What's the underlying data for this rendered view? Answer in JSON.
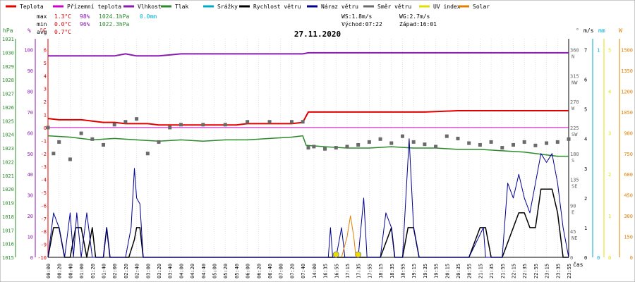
{
  "legend": [
    {
      "label": "Teplota",
      "color": "#e00000"
    },
    {
      "label": "Přízemní teplota",
      "color": "#cc00cc"
    },
    {
      "label": "Vlhkost",
      "color": "#8a1ab0"
    },
    {
      "label": "Tlak",
      "color": "#2a8a2a"
    },
    {
      "label": "Srážky",
      "color": "#00aacc"
    },
    {
      "label": "Rychlost větru",
      "color": "#000000"
    },
    {
      "label": "Náraz větru",
      "color": "#000090"
    },
    {
      "label": "Směr větru",
      "color": "#6a6a6a"
    },
    {
      "label": "UV index",
      "color": "#e0e000"
    },
    {
      "label": "Solar",
      "color": "#e08000"
    }
  ],
  "stats": {
    "max": {
      "label": "max",
      "temp": "1.3°C",
      "hum": "98%",
      "press": "1024.1hPa",
      "rain": "0.0mm"
    },
    "min": {
      "label": "min",
      "temp": "0.0°C",
      "hum": "96%",
      "press": "1022.3hPa"
    },
    "avg": {
      "label": "avg",
      "temp": "0.7°C"
    }
  },
  "wind_info": {
    "ws": "WS:1.8m/s",
    "wg": "WG:2.7m/s",
    "sunrise": "Východ:07:22",
    "sunset": "Západ:16:01"
  },
  "axis_units": {
    "hpa": "hPa",
    "pct": "%",
    "c": "°C",
    "deg": "°",
    "ms": "m/s",
    "mm": "mm",
    "w": "W",
    "time": "čas"
  },
  "chart_data": {
    "type": "line",
    "title": "27.11.2020",
    "y_axes": {
      "pressure_hpa": {
        "ticks": [
          1015,
          1016,
          1017,
          1018,
          1019,
          1020,
          1021,
          1022,
          1023,
          1024,
          1025,
          1026,
          1027,
          1028,
          1029,
          1030,
          1031
        ]
      },
      "humidity_pct": {
        "ticks": [
          0,
          10,
          20,
          30,
          40,
          50,
          60,
          70,
          80,
          90,
          100
        ]
      },
      "temperature_c": {
        "ticks": [
          -10,
          -9,
          -8,
          -7,
          -6,
          -5,
          -4,
          -3,
          -2,
          -1,
          0,
          1,
          2,
          3,
          4,
          5,
          6
        ]
      },
      "wind_dir_deg": {
        "ticks": [
          {
            "v": 360,
            "d": "N"
          },
          {
            "v": 315,
            "d": "NW"
          },
          {
            "v": 270,
            "d": "W"
          },
          {
            "v": 225,
            "d": "SW"
          },
          {
            "v": 180,
            "d": "S"
          },
          {
            "v": 135,
            "d": "SE"
          },
          {
            "v": 90,
            "d": "E"
          },
          {
            "v": 45,
            "d": "NE"
          },
          {
            "v": 0,
            "d": ""
          }
        ]
      },
      "wind_ms": {
        "ticks": [
          0,
          1,
          2,
          3,
          4,
          5,
          6,
          7
        ]
      },
      "rain_mm": {
        "ticks": [
          0,
          1
        ]
      },
      "uv": {
        "ticks": [
          0,
          1,
          2,
          3,
          4,
          5
        ]
      },
      "solar_w": {
        "ticks": [
          0,
          150,
          300,
          450,
          600,
          750,
          900,
          1050,
          1200,
          1350,
          1500
        ]
      }
    },
    "x_ticks": [
      "00:00",
      "00:20",
      "00:40",
      "01:00",
      "01:20",
      "01:40",
      "02:00",
      "02:20",
      "02:40",
      "03:00",
      "03:20",
      "03:40",
      "04:00",
      "04:20",
      "04:40",
      "05:00",
      "05:20",
      "05:40",
      "06:00",
      "06:20",
      "06:40",
      "07:00",
      "07:20",
      "07:40",
      "14:00",
      "16:35",
      "16:55",
      "17:15",
      "17:35",
      "17:55",
      "18:15",
      "18:35",
      "18:55",
      "19:15",
      "19:35",
      "19:55",
      "20:15",
      "20:35",
      "20:55",
      "21:15",
      "21:35",
      "21:55",
      "22:15",
      "22:35",
      "22:55",
      "23:15",
      "23:35",
      "23:55"
    ],
    "series": [
      {
        "name": "Teplota",
        "points": [
          [
            0,
            0.7
          ],
          [
            1,
            0.6
          ],
          [
            2,
            0.6
          ],
          [
            3,
            0.6
          ],
          [
            4,
            0.5
          ],
          [
            5,
            0.4
          ],
          [
            6,
            0.4
          ],
          [
            7,
            0.3
          ],
          [
            8,
            0.3
          ],
          [
            9,
            0.3
          ],
          [
            10,
            0.2
          ],
          [
            11,
            0.2
          ],
          [
            12,
            0.2
          ],
          [
            13,
            0.2
          ],
          [
            14,
            0.2
          ],
          [
            15,
            0.2
          ],
          [
            16,
            0.2
          ],
          [
            17,
            0.2
          ],
          [
            18,
            0.3
          ],
          [
            19,
            0.3
          ],
          [
            20,
            0.3
          ],
          [
            21,
            0.3
          ],
          [
            22,
            0.3
          ],
          [
            23,
            0.4
          ],
          [
            23.5,
            1.2
          ],
          [
            25,
            1.2
          ],
          [
            28,
            1.2
          ],
          [
            31,
            1.2
          ],
          [
            34,
            1.2
          ],
          [
            37,
            1.3
          ],
          [
            40,
            1.3
          ],
          [
            43,
            1.3
          ],
          [
            46,
            1.3
          ],
          [
            47,
            1.3
          ]
        ]
      },
      {
        "name": "Přízemní teplota",
        "points": [
          [
            0,
            0.0
          ],
          [
            47,
            0.0
          ]
        ]
      },
      {
        "name": "Vlhkost",
        "points": [
          [
            0,
            97
          ],
          [
            6,
            97
          ],
          [
            7,
            98
          ],
          [
            8,
            97
          ],
          [
            9,
            97
          ],
          [
            10,
            97
          ],
          [
            11,
            97.5
          ],
          [
            12,
            98
          ],
          [
            23,
            98
          ],
          [
            23.5,
            98.5
          ],
          [
            47,
            98.5
          ]
        ]
      },
      {
        "name": "Tlak",
        "points": [
          [
            0,
            1023.9
          ],
          [
            2,
            1023.8
          ],
          [
            4,
            1023.6
          ],
          [
            6,
            1023.7
          ],
          [
            8,
            1023.6
          ],
          [
            10,
            1023.5
          ],
          [
            12,
            1023.6
          ],
          [
            14,
            1023.5
          ],
          [
            16,
            1023.6
          ],
          [
            18,
            1023.6
          ],
          [
            20,
            1023.7
          ],
          [
            22,
            1023.8
          ],
          [
            23,
            1023.9
          ],
          [
            23.3,
            1023.2
          ],
          [
            25,
            1023.1
          ],
          [
            27,
            1023.0
          ],
          [
            29,
            1023.0
          ],
          [
            31,
            1023.1
          ],
          [
            33,
            1023.0
          ],
          [
            35,
            1023.0
          ],
          [
            37,
            1022.9
          ],
          [
            39,
            1022.9
          ],
          [
            41,
            1022.8
          ],
          [
            43,
            1022.7
          ],
          [
            45,
            1022.5
          ],
          [
            46,
            1022.4
          ],
          [
            47,
            1022.4
          ]
        ]
      },
      {
        "name": "Rychlost větru",
        "points": [
          [
            0,
            0
          ],
          [
            0.5,
            1
          ],
          [
            1,
            1
          ],
          [
            1.5,
            0
          ],
          [
            2,
            0
          ],
          [
            2.5,
            1
          ],
          [
            3,
            1
          ],
          [
            3.5,
            0
          ],
          [
            4,
            1
          ],
          [
            4.3,
            0
          ],
          [
            5,
            0
          ],
          [
            5.3,
            1
          ],
          [
            5.6,
            0
          ],
          [
            7,
            0
          ],
          [
            7.3,
            0
          ],
          [
            7.8,
            0.6
          ],
          [
            8,
            1
          ],
          [
            8.3,
            1
          ],
          [
            8.6,
            0
          ],
          [
            9,
            0
          ],
          [
            25,
            0
          ],
          [
            26,
            0
          ],
          [
            27,
            0
          ],
          [
            28,
            0
          ],
          [
            29,
            0
          ],
          [
            30,
            0
          ],
          [
            31,
            1
          ],
          [
            31.3,
            0
          ],
          [
            32,
            0
          ],
          [
            32.5,
            1
          ],
          [
            33,
            1
          ],
          [
            33.5,
            0
          ],
          [
            34,
            0
          ],
          [
            35,
            0
          ],
          [
            36,
            0
          ],
          [
            38,
            0
          ],
          [
            39,
            1
          ],
          [
            39.5,
            1
          ],
          [
            40,
            0
          ],
          [
            41,
            0
          ],
          [
            42,
            1
          ],
          [
            42.5,
            1.5
          ],
          [
            43,
            1.5
          ],
          [
            43.5,
            1
          ],
          [
            44,
            1
          ],
          [
            44.5,
            2.3
          ],
          [
            45,
            2.3
          ],
          [
            45.5,
            2.3
          ],
          [
            46,
            1.5
          ],
          [
            46.5,
            0
          ],
          [
            47,
            0
          ]
        ]
      },
      {
        "name": "Náraz větru",
        "points": [
          [
            0,
            0
          ],
          [
            0.5,
            1.5
          ],
          [
            1,
            1
          ],
          [
            1.5,
            0
          ],
          [
            2,
            1.5
          ],
          [
            2.3,
            0
          ],
          [
            2.6,
            1.5
          ],
          [
            3,
            0
          ],
          [
            3.5,
            1.5
          ],
          [
            4,
            0
          ],
          [
            5,
            0
          ],
          [
            5.3,
            1
          ],
          [
            5.6,
            0
          ],
          [
            7,
            0
          ],
          [
            7.5,
            1
          ],
          [
            7.8,
            3
          ],
          [
            8,
            2
          ],
          [
            8.3,
            1.8
          ],
          [
            8.6,
            0
          ],
          [
            9,
            0
          ],
          [
            24,
            0
          ],
          [
            25.3,
            0
          ],
          [
            25.5,
            1
          ],
          [
            25.7,
            0
          ],
          [
            26,
            0
          ],
          [
            26.5,
            1
          ],
          [
            26.8,
            0
          ],
          [
            28,
            0
          ],
          [
            28.5,
            2
          ],
          [
            28.8,
            0
          ],
          [
            29,
            0
          ],
          [
            30,
            0
          ],
          [
            30.5,
            1.5
          ],
          [
            31,
            1
          ],
          [
            31.3,
            0
          ],
          [
            32,
            0
          ],
          [
            32.3,
            2
          ],
          [
            32.6,
            4
          ],
          [
            33,
            1
          ],
          [
            33.5,
            0
          ],
          [
            34,
            0
          ],
          [
            35,
            0
          ],
          [
            36,
            0
          ],
          [
            38,
            0
          ],
          [
            39.3,
            1
          ],
          [
            39.5,
            0
          ],
          [
            40,
            0
          ],
          [
            41,
            0
          ],
          [
            41.5,
            2.5
          ],
          [
            42,
            2
          ],
          [
            42.5,
            2.8
          ],
          [
            43,
            2
          ],
          [
            43.5,
            1.5
          ],
          [
            44,
            2.5
          ],
          [
            44.5,
            3.5
          ],
          [
            45,
            3.2
          ],
          [
            45.5,
            3.5
          ],
          [
            46,
            2.5
          ],
          [
            46.5,
            1
          ],
          [
            47,
            0
          ]
        ]
      },
      {
        "name": "Směr větru",
        "points": [
          [
            0,
            225
          ],
          [
            0.5,
            180
          ],
          [
            1,
            200
          ],
          [
            2,
            170
          ],
          [
            3,
            215
          ],
          [
            4,
            205
          ],
          [
            5,
            195
          ],
          [
            6,
            230
          ],
          [
            7,
            235
          ],
          [
            8,
            240
          ],
          [
            9,
            180
          ],
          [
            10,
            200
          ],
          [
            11,
            225
          ],
          [
            12,
            230
          ],
          [
            14,
            230
          ],
          [
            16,
            230
          ],
          [
            18,
            235
          ],
          [
            20,
            235
          ],
          [
            22,
            235
          ],
          [
            23,
            235
          ],
          [
            23.5,
            190
          ],
          [
            24,
            192
          ],
          [
            25,
            188
          ],
          [
            26,
            190
          ],
          [
            27,
            192
          ],
          [
            28,
            195
          ],
          [
            29,
            200
          ],
          [
            30,
            205
          ],
          [
            31,
            198
          ],
          [
            32,
            210
          ],
          [
            33,
            200
          ],
          [
            34,
            196
          ],
          [
            35,
            192
          ],
          [
            36,
            210
          ],
          [
            37,
            206
          ],
          [
            38,
            198
          ],
          [
            39,
            195
          ],
          [
            40,
            200
          ],
          [
            41,
            190
          ],
          [
            42,
            195
          ],
          [
            43,
            200
          ],
          [
            44,
            194
          ],
          [
            45,
            198
          ],
          [
            46,
            200
          ],
          [
            47,
            205
          ]
        ]
      },
      {
        "name": "UV index",
        "points": [
          [
            26,
            0
          ],
          [
            28,
            0
          ]
        ]
      },
      {
        "name": "Solar",
        "points": [
          [
            26.5,
            0
          ],
          [
            27,
            150
          ],
          [
            27.3,
            300
          ],
          [
            27.6,
            150
          ],
          [
            27.8,
            0
          ]
        ]
      }
    ]
  }
}
